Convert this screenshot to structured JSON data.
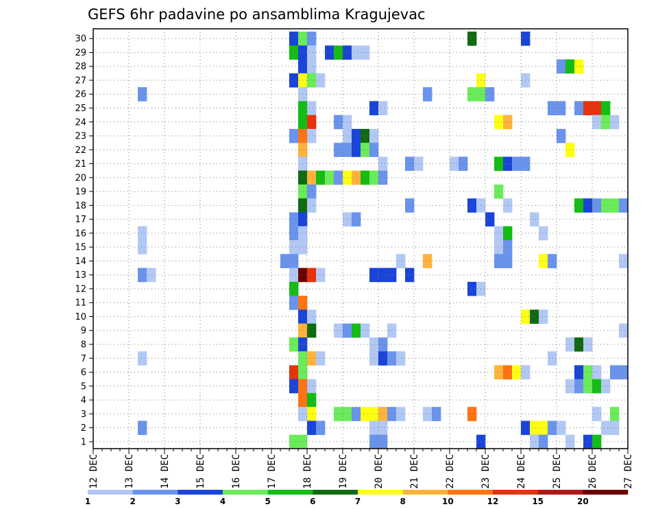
{
  "chart_data": {
    "type": "heatmap",
    "title": "GEFS 6hr padavine po ansamblima Kragujevac",
    "y_categories": [
      "1",
      "2",
      "3",
      "4",
      "5",
      "6",
      "7",
      "8",
      "9",
      "10",
      "11",
      "12",
      "13",
      "14",
      "15",
      "16",
      "17",
      "18",
      "19",
      "20",
      "21",
      "22",
      "23",
      "24",
      "25",
      "26",
      "27",
      "28",
      "29",
      "30"
    ],
    "x_tick_labels": [
      "12 DEC",
      "13 DEC",
      "14 DEC",
      "15 DEC",
      "16 DEC",
      "17 DEC",
      "18 DEC",
      "19 DEC",
      "20 DEC",
      "21 DEC",
      "22 DEC",
      "23 DEC",
      "24 DEC",
      "25 DEC",
      "26 DEC",
      "27 DEC"
    ],
    "x_range": [
      "12 DEC 00Z",
      "27 DEC 00Z"
    ],
    "x_step": "6hr",
    "grid": true,
    "legend": "bottom",
    "colorbar": {
      "labels": [
        "1",
        "2",
        "3",
        "4",
        "5",
        "6",
        "7",
        "8",
        "10",
        "12",
        "15",
        "20"
      ],
      "colors": [
        "#b2c8f4",
        "#6a93ec",
        "#1a44d8",
        "#6aec5a",
        "#14bc14",
        "#0f6b0f",
        "#ffff12",
        "#ffb33c",
        "#ff7412",
        "#e8320c",
        "#b01818",
        "#6b0000"
      ]
    },
    "cells_note": "member, time slot index (0 = 12 DEC 00Z, 1 slot = 6hr), color class index",
    "cells": [
      [
        30,
        22,
        2
      ],
      [
        30,
        23,
        3
      ],
      [
        30,
        24,
        1
      ],
      [
        30,
        42,
        5
      ],
      [
        30,
        48,
        2
      ],
      [
        29,
        22,
        4
      ],
      [
        29,
        23,
        2
      ],
      [
        29,
        24,
        0
      ],
      [
        29,
        26,
        2
      ],
      [
        29,
        27,
        4
      ],
      [
        29,
        28,
        2
      ],
      [
        29,
        29,
        0
      ],
      [
        29,
        30,
        0
      ],
      [
        28,
        23,
        2
      ],
      [
        28,
        24,
        0
      ],
      [
        28,
        52,
        1
      ],
      [
        28,
        53,
        4
      ],
      [
        28,
        54,
        6
      ],
      [
        27,
        22,
        2
      ],
      [
        27,
        23,
        6
      ],
      [
        27,
        24,
        3
      ],
      [
        27,
        25,
        0
      ],
      [
        27,
        43,
        6
      ],
      [
        27,
        48,
        0
      ],
      [
        26,
        5,
        1
      ],
      [
        26,
        23,
        0
      ],
      [
        26,
        37,
        1
      ],
      [
        26,
        42,
        3
      ],
      [
        26,
        43,
        3
      ],
      [
        26,
        44,
        1
      ],
      [
        25,
        23,
        4
      ],
      [
        25,
        24,
        0
      ],
      [
        25,
        31,
        2
      ],
      [
        25,
        32,
        0
      ],
      [
        25,
        51,
        1
      ],
      [
        25,
        52,
        1
      ],
      [
        25,
        54,
        1
      ],
      [
        25,
        55,
        9
      ],
      [
        25,
        56,
        9
      ],
      [
        25,
        57,
        4
      ],
      [
        24,
        23,
        4
      ],
      [
        24,
        24,
        9
      ],
      [
        24,
        27,
        1
      ],
      [
        24,
        28,
        0
      ],
      [
        24,
        45,
        6
      ],
      [
        24,
        46,
        7
      ],
      [
        24,
        56,
        0
      ],
      [
        24,
        57,
        3
      ],
      [
        24,
        58,
        0
      ],
      [
        23,
        22,
        1
      ],
      [
        23,
        23,
        8
      ],
      [
        23,
        24,
        0
      ],
      [
        23,
        28,
        0
      ],
      [
        23,
        29,
        2
      ],
      [
        23,
        30,
        5
      ],
      [
        23,
        31,
        0
      ],
      [
        23,
        52,
        1
      ],
      [
        22,
        23,
        7
      ],
      [
        22,
        27,
        1
      ],
      [
        22,
        28,
        1
      ],
      [
        22,
        29,
        2
      ],
      [
        22,
        30,
        3
      ],
      [
        22,
        31,
        1
      ],
      [
        22,
        53,
        6
      ],
      [
        21,
        23,
        0
      ],
      [
        21,
        32,
        0
      ],
      [
        21,
        35,
        1
      ],
      [
        21,
        36,
        0
      ],
      [
        21,
        40,
        0
      ],
      [
        21,
        41,
        1
      ],
      [
        21,
        45,
        4
      ],
      [
        21,
        46,
        2
      ],
      [
        21,
        47,
        1
      ],
      [
        21,
        48,
        1
      ],
      [
        20,
        23,
        5
      ],
      [
        20,
        24,
        7
      ],
      [
        20,
        25,
        4
      ],
      [
        20,
        26,
        3
      ],
      [
        20,
        27,
        1
      ],
      [
        20,
        28,
        6
      ],
      [
        20,
        29,
        7
      ],
      [
        20,
        30,
        4
      ],
      [
        20,
        31,
        3
      ],
      [
        20,
        32,
        1
      ],
      [
        19,
        23,
        3
      ],
      [
        19,
        24,
        1
      ],
      [
        19,
        45,
        3
      ],
      [
        18,
        23,
        5
      ],
      [
        18,
        24,
        0
      ],
      [
        18,
        35,
        1
      ],
      [
        18,
        42,
        2
      ],
      [
        18,
        43,
        0
      ],
      [
        18,
        46,
        0
      ],
      [
        18,
        54,
        4
      ],
      [
        18,
        55,
        2
      ],
      [
        18,
        56,
        1
      ],
      [
        18,
        57,
        3
      ],
      [
        18,
        58,
        3
      ],
      [
        18,
        59,
        1
      ],
      [
        17,
        22,
        1
      ],
      [
        17,
        23,
        2
      ],
      [
        17,
        28,
        0
      ],
      [
        17,
        29,
        1
      ],
      [
        17,
        44,
        2
      ],
      [
        17,
        49,
        0
      ],
      [
        16,
        5,
        0
      ],
      [
        16,
        22,
        1
      ],
      [
        16,
        23,
        0
      ],
      [
        16,
        45,
        0
      ],
      [
        16,
        46,
        4
      ],
      [
        16,
        50,
        0
      ],
      [
        15,
        5,
        0
      ],
      [
        15,
        22,
        0
      ],
      [
        15,
        23,
        0
      ],
      [
        15,
        45,
        0
      ],
      [
        15,
        46,
        1
      ],
      [
        14,
        21,
        1
      ],
      [
        14,
        22,
        1
      ],
      [
        14,
        34,
        0
      ],
      [
        14,
        37,
        7
      ],
      [
        14,
        45,
        1
      ],
      [
        14,
        46,
        1
      ],
      [
        14,
        50,
        6
      ],
      [
        14,
        51,
        1
      ],
      [
        14,
        59,
        0
      ],
      [
        13,
        5,
        1
      ],
      [
        13,
        6,
        0
      ],
      [
        13,
        22,
        0
      ],
      [
        13,
        23,
        11
      ],
      [
        13,
        24,
        9
      ],
      [
        13,
        25,
        0
      ],
      [
        13,
        31,
        2
      ],
      [
        13,
        32,
        2
      ],
      [
        13,
        33,
        2
      ],
      [
        13,
        35,
        2
      ],
      [
        12,
        22,
        4
      ],
      [
        12,
        42,
        2
      ],
      [
        12,
        43,
        0
      ],
      [
        11,
        22,
        1
      ],
      [
        11,
        23,
        8
      ],
      [
        10,
        23,
        2
      ],
      [
        10,
        24,
        0
      ],
      [
        10,
        48,
        6
      ],
      [
        10,
        49,
        5
      ],
      [
        10,
        50,
        0
      ],
      [
        9,
        23,
        7
      ],
      [
        9,
        24,
        5
      ],
      [
        9,
        27,
        0
      ],
      [
        9,
        28,
        1
      ],
      [
        9,
        29,
        4
      ],
      [
        9,
        30,
        0
      ],
      [
        9,
        33,
        0
      ],
      [
        9,
        59,
        0
      ],
      [
        8,
        22,
        3
      ],
      [
        8,
        23,
        2
      ],
      [
        8,
        31,
        0
      ],
      [
        8,
        32,
        1
      ],
      [
        8,
        53,
        0
      ],
      [
        8,
        54,
        5
      ],
      [
        8,
        55,
        0
      ],
      [
        7,
        5,
        0
      ],
      [
        7,
        23,
        3
      ],
      [
        7,
        24,
        7
      ],
      [
        7,
        25,
        0
      ],
      [
        7,
        31,
        0
      ],
      [
        7,
        32,
        2
      ],
      [
        7,
        33,
        1
      ],
      [
        7,
        34,
        0
      ],
      [
        7,
        51,
        0
      ],
      [
        6,
        22,
        9
      ],
      [
        6,
        23,
        3
      ],
      [
        6,
        45,
        7
      ],
      [
        6,
        46,
        8
      ],
      [
        6,
        47,
        6
      ],
      [
        6,
        48,
        0
      ],
      [
        6,
        54,
        2
      ],
      [
        6,
        55,
        3
      ],
      [
        6,
        56,
        0
      ],
      [
        6,
        58,
        1
      ],
      [
        6,
        59,
        1
      ],
      [
        5,
        22,
        2
      ],
      [
        5,
        23,
        8
      ],
      [
        5,
        24,
        0
      ],
      [
        5,
        53,
        0
      ],
      [
        5,
        54,
        1
      ],
      [
        5,
        55,
        3
      ],
      [
        5,
        56,
        4
      ],
      [
        5,
        57,
        0
      ],
      [
        4,
        23,
        8
      ],
      [
        4,
        24,
        4
      ],
      [
        3,
        23,
        0
      ],
      [
        3,
        24,
        6
      ],
      [
        3,
        27,
        3
      ],
      [
        3,
        28,
        3
      ],
      [
        3,
        29,
        1
      ],
      [
        3,
        30,
        6
      ],
      [
        3,
        31,
        6
      ],
      [
        3,
        32,
        7
      ],
      [
        3,
        33,
        1
      ],
      [
        3,
        34,
        0
      ],
      [
        3,
        37,
        0
      ],
      [
        3,
        38,
        1
      ],
      [
        3,
        42,
        8
      ],
      [
        3,
        56,
        0
      ],
      [
        3,
        58,
        3
      ],
      [
        2,
        5,
        1
      ],
      [
        2,
        24,
        2
      ],
      [
        2,
        25,
        1
      ],
      [
        2,
        31,
        0
      ],
      [
        2,
        32,
        0
      ],
      [
        2,
        48,
        2
      ],
      [
        2,
        49,
        6
      ],
      [
        2,
        50,
        6
      ],
      [
        2,
        51,
        1
      ],
      [
        2,
        52,
        0
      ],
      [
        2,
        57,
        0
      ],
      [
        2,
        58,
        0
      ],
      [
        1,
        22,
        3
      ],
      [
        1,
        23,
        3
      ],
      [
        1,
        31,
        1
      ],
      [
        1,
        32,
        1
      ],
      [
        1,
        43,
        2
      ],
      [
        1,
        49,
        0
      ],
      [
        1,
        50,
        1
      ],
      [
        1,
        53,
        0
      ],
      [
        1,
        55,
        2
      ],
      [
        1,
        56,
        4
      ]
    ]
  }
}
